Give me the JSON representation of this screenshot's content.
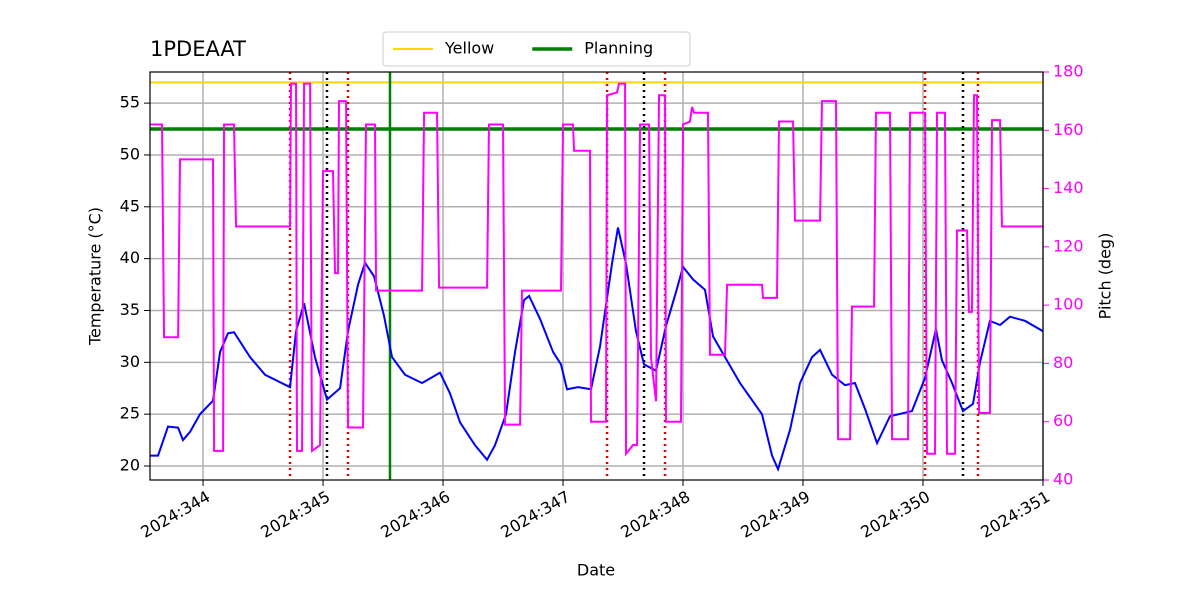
{
  "chart_data": {
    "type": "line",
    "title": "1PDEAAT",
    "xlabel": "Date",
    "ylabel": "Temperature (°C)",
    "y2label": "Pitch (deg)",
    "y2color": "#ff00ff",
    "xlim": [
      343.558,
      351.0
    ],
    "xticks": [
      {
        "value": 344,
        "label": "2024:344"
      },
      {
        "value": 345,
        "label": "2024:345"
      },
      {
        "value": 346,
        "label": "2024:346"
      },
      {
        "value": 347,
        "label": "2024:347"
      },
      {
        "value": 348,
        "label": "2024:348"
      },
      {
        "value": 349,
        "label": "2024:349"
      },
      {
        "value": 350,
        "label": "2024:350"
      },
      {
        "value": 351,
        "label": "2024:351"
      }
    ],
    "ylim": [
      18.65,
      58
    ],
    "yticks": [
      20,
      25,
      30,
      35,
      40,
      45,
      50,
      55
    ],
    "y2lim": [
      40,
      180
    ],
    "y2ticks": [
      40,
      60,
      80,
      100,
      120,
      140,
      160,
      180
    ],
    "grid": true,
    "legend": "upper center",
    "series": [
      {
        "color": "#0000ff",
        "x": [
          343.558,
          343.625,
          343.708,
          343.792,
          343.833,
          343.892,
          343.975,
          344.083,
          344.142,
          344.208,
          344.258,
          344.392,
          344.517,
          344.725,
          344.775,
          344.842,
          344.933,
          345.033,
          345.142,
          345.208,
          345.292,
          345.35,
          345.425,
          345.508,
          345.575,
          345.683,
          345.825,
          345.975,
          346.058,
          346.142,
          346.267,
          346.367,
          346.433,
          346.525,
          346.6,
          346.675,
          346.717,
          346.808,
          346.917,
          346.983,
          347.033,
          347.125,
          347.233,
          347.308,
          347.408,
          347.458,
          347.525,
          347.608,
          347.675,
          347.775,
          347.858,
          347.942,
          348.0,
          348.083,
          348.183,
          348.25,
          348.35,
          348.475,
          348.658,
          348.742,
          348.792,
          348.892,
          348.975,
          349.075,
          349.142,
          349.242,
          349.35,
          349.433,
          349.517,
          349.617,
          349.725,
          349.908,
          350.017,
          350.108,
          350.158,
          350.242,
          350.333,
          350.417,
          350.475,
          350.558,
          350.642,
          350.725,
          350.85,
          351.0
        ],
        "values": [
          21,
          21,
          23.8,
          23.7,
          22.5,
          23.3,
          25,
          26.3,
          31,
          32.8,
          32.9,
          30.5,
          28.8,
          27.6,
          33,
          35.7,
          30.5,
          26.4,
          27.5,
          33,
          37.5,
          39.6,
          38.3,
          34.5,
          30.5,
          28.8,
          28,
          29,
          27,
          24.2,
          22,
          20.6,
          22,
          25,
          31,
          36,
          36.4,
          34.2,
          31,
          29.8,
          27.4,
          27.6,
          27.4,
          31.5,
          39.5,
          43,
          39.5,
          33,
          29.8,
          29.2,
          33.5,
          36.8,
          39.2,
          38,
          37,
          32.5,
          30.5,
          28,
          25,
          21,
          19.7,
          23.5,
          28,
          30.5,
          31.2,
          28.8,
          27.8,
          28,
          25.5,
          22.2,
          24.8,
          25.3,
          28.5,
          33.2,
          30.2,
          28,
          25.3,
          26,
          30,
          34,
          33.6,
          34.4,
          34,
          33
        ]
      },
      {
        "color": "#ff00ff",
        "axis": "y2",
        "x": [
          343.558,
          343.658,
          343.675,
          343.792,
          343.808,
          344.083,
          344.092,
          344.167,
          344.175,
          344.258,
          344.275,
          344.725,
          344.733,
          344.775,
          344.783,
          344.825,
          344.842,
          344.892,
          344.908,
          344.975,
          345.0,
          345.083,
          345.1,
          345.125,
          345.133,
          345.192,
          345.208,
          345.333,
          345.358,
          345.433,
          345.442,
          345.825,
          345.842,
          345.95,
          345.967,
          346.367,
          346.383,
          346.5,
          346.517,
          346.642,
          346.658,
          346.983,
          347.0,
          347.083,
          347.092,
          347.225,
          347.233,
          347.358,
          347.367,
          347.45,
          347.467,
          347.517,
          347.525,
          347.583,
          347.617,
          347.642,
          347.717,
          347.733,
          347.775,
          347.8,
          347.85,
          347.858,
          347.983,
          348.0,
          348.058,
          348.075,
          348.092,
          348.208,
          348.225,
          348.35,
          348.367,
          348.658,
          348.667,
          348.783,
          348.8,
          348.917,
          348.933,
          349.142,
          349.158,
          349.275,
          349.292,
          349.392,
          349.408,
          349.592,
          349.608,
          349.725,
          349.742,
          349.875,
          349.892,
          350.017,
          350.033,
          350.1,
          350.117,
          350.183,
          350.2,
          350.267,
          350.283,
          350.367,
          350.383,
          350.408,
          350.425,
          350.45,
          350.467,
          350.558,
          350.575,
          350.642,
          350.658,
          351.0
        ],
        "values": [
          162,
          162,
          89,
          89,
          150,
          150,
          50,
          50,
          162,
          162,
          127,
          127,
          176,
          176,
          50,
          50,
          176,
          176,
          50,
          52,
          146,
          146,
          111,
          111,
          170,
          170,
          58,
          58,
          162,
          162,
          105,
          105,
          166,
          166,
          106,
          106,
          162,
          162,
          59,
          59,
          105,
          105,
          162,
          162,
          153,
          153,
          60,
          60,
          172,
          173,
          176,
          176,
          49,
          52,
          52,
          162,
          162,
          82,
          67,
          172,
          172,
          60,
          60,
          162,
          163,
          168,
          166,
          166,
          83,
          83,
          107,
          107,
          102.5,
          102.5,
          163,
          163,
          129,
          129,
          170,
          170,
          54,
          54,
          99.5,
          99.5,
          166,
          166,
          54,
          54,
          166,
          166,
          49,
          49,
          166,
          166,
          49,
          49,
          125.6,
          125.6,
          97.7,
          97.7,
          172,
          172,
          63,
          63,
          163.5,
          163.5,
          127,
          127
        ]
      }
    ],
    "hlines": [
      {
        "name": "Yellow",
        "color": "#ffd700",
        "value": 57
      },
      {
        "name": "Planning",
        "color": "#008000",
        "value": 52.5
      }
    ],
    "vlines": [
      {
        "x": 344.725,
        "color": "#e00000",
        "style": "dotted"
      },
      {
        "x": 345.208,
        "color": "#e00000",
        "style": "dotted"
      },
      {
        "x": 347.367,
        "color": "#e00000",
        "style": "dotted"
      },
      {
        "x": 347.85,
        "color": "#e00000",
        "style": "dotted"
      },
      {
        "x": 350.017,
        "color": "#e00000",
        "style": "dotted"
      },
      {
        "x": 350.458,
        "color": "#e00000",
        "style": "dotted"
      },
      {
        "x": 345.033,
        "color": "#000000",
        "style": "dotted"
      },
      {
        "x": 347.675,
        "color": "#000000",
        "style": "dotted"
      },
      {
        "x": 350.333,
        "color": "#000000",
        "style": "dotted"
      },
      {
        "x": 345.558,
        "color": "#008000",
        "style": "solid"
      }
    ]
  }
}
